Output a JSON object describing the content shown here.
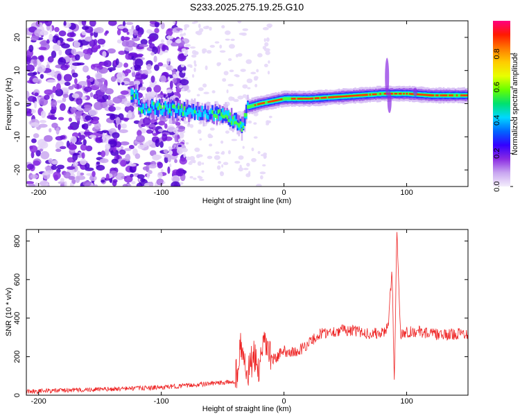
{
  "title": "S233.2025.275.19.25.G10",
  "chart_data": [
    {
      "type": "heatmap",
      "xlabel": "Height of straight line (km)",
      "ylabel": "Frequency (Hz)",
      "xlim": [
        -210,
        150
      ],
      "ylim": [
        -25,
        25
      ],
      "x_ticks": [
        -200,
        -100,
        0,
        100
      ],
      "y_ticks": [
        -20,
        -10,
        0,
        10,
        20
      ],
      "colorbar": {
        "label": "Normalized spectral amplitude",
        "range": [
          0.0,
          1.0
        ],
        "ticks": [
          0.0,
          0.2,
          0.4,
          0.6,
          0.8
        ],
        "colors": [
          "#f4eefc",
          "#c9a6f0",
          "#8a2be2",
          "#3300ff",
          "#0066ff",
          "#00d8ff",
          "#00e070",
          "#66ff00",
          "#e8ff00",
          "#ffcc00",
          "#ff7a00",
          "#ff1a00",
          "#ff007f"
        ]
      },
      "ridge": [
        {
          "x": -120,
          "y": -1
        },
        {
          "x": -100,
          "y": -1.5
        },
        {
          "x": -80,
          "y": -2
        },
        {
          "x": -60,
          "y": -3
        },
        {
          "x": -45,
          "y": -4
        },
        {
          "x": -35,
          "y": -7
        },
        {
          "x": -30,
          "y": -1
        },
        {
          "x": -20,
          "y": 0
        },
        {
          "x": 0,
          "y": 1.5
        },
        {
          "x": 20,
          "y": 1.5
        },
        {
          "x": 40,
          "y": 2
        },
        {
          "x": 60,
          "y": 2.5
        },
        {
          "x": 80,
          "y": 3
        },
        {
          "x": 100,
          "y": 3
        },
        {
          "x": 120,
          "y": 2.5
        },
        {
          "x": 150,
          "y": 2.5
        }
      ]
    },
    {
      "type": "line",
      "xlabel": "Height of straight line (km)",
      "ylabel": "SNR (10 * v/v)",
      "xlim": [
        -210,
        150
      ],
      "ylim": [
        0,
        860
      ],
      "x_ticks": [
        -200,
        -100,
        0,
        100
      ],
      "y_ticks": [
        0,
        200,
        400,
        600,
        800
      ],
      "color": "#ee2222",
      "x": [
        -210,
        -150,
        -100,
        -80,
        -60,
        -40,
        -35,
        -30,
        -25,
        -20,
        -15,
        -10,
        0,
        10,
        20,
        30,
        40,
        50,
        60,
        70,
        80,
        85,
        88,
        90,
        92,
        95,
        100,
        110,
        120,
        130,
        140,
        150
      ],
      "values": [
        20,
        30,
        40,
        50,
        60,
        70,
        250,
        100,
        200,
        130,
        280,
        180,
        230,
        220,
        270,
        320,
        330,
        340,
        330,
        320,
        320,
        360,
        650,
        60,
        860,
        320,
        330,
        330,
        320,
        310,
        320,
        320
      ]
    }
  ]
}
